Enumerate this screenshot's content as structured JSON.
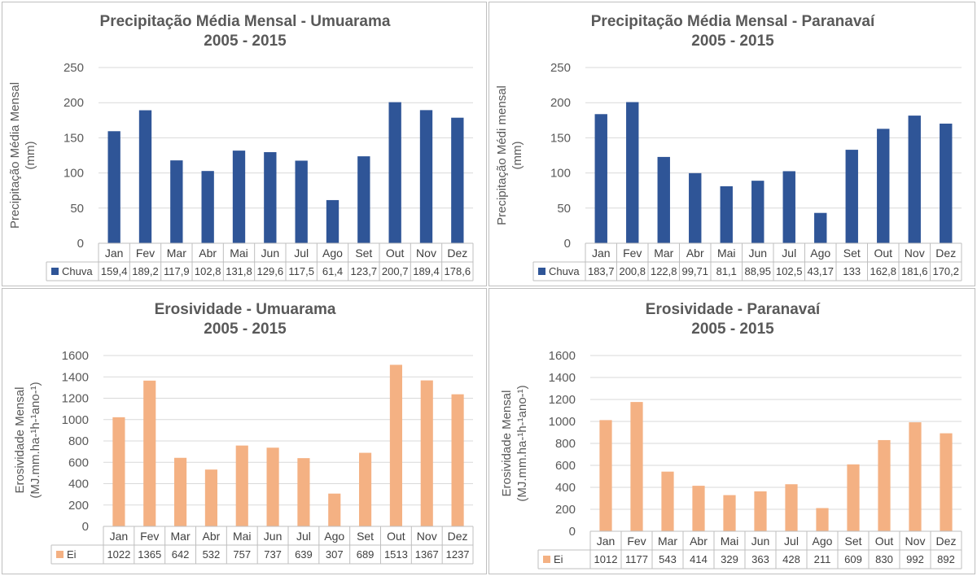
{
  "chart_data": [
    {
      "type": "bar",
      "title": "Precipitação Média Mensal - Umuarama",
      "subtitle": "2005 - 2015",
      "ylabel": [
        "Precipitação Média Mensal",
        "(mm)"
      ],
      "ylim": [
        0,
        250
      ],
      "yticks": [
        0,
        50,
        100,
        150,
        200,
        250
      ],
      "grid": true,
      "legend": "data-table",
      "categories": [
        "Jan",
        "Fev",
        "Mar",
        "Abr",
        "Mai",
        "Jun",
        "Jul",
        "Ago",
        "Set",
        "Out",
        "Nov",
        "Dez"
      ],
      "series": [
        {
          "name": "Chuva",
          "color": "#2F5597",
          "values": [
            159.4,
            189.2,
            117.9,
            102.8,
            131.8,
            129.6,
            117.5,
            61.4,
            123.7,
            200.7,
            189.4,
            178.6
          ],
          "labels": [
            "159,4",
            "189,2",
            "117,9",
            "102,8",
            "131,8",
            "129,6",
            "117,5",
            "61,4",
            "123,7",
            "200,7",
            "189,4",
            "178,6"
          ]
        }
      ]
    },
    {
      "type": "bar",
      "title": "Precipitação Média Mensal - Paranavaí",
      "subtitle": "2005 - 2015",
      "ylabel": [
        "Precipitação Médi mensal",
        "(mm)"
      ],
      "ylim": [
        0,
        250
      ],
      "yticks": [
        0,
        50,
        100,
        150,
        200,
        250
      ],
      "grid": true,
      "legend": "data-table",
      "categories": [
        "Jan",
        "Fev",
        "Mar",
        "Abr",
        "Mai",
        "Jun",
        "Jul",
        "Ago",
        "Set",
        "Out",
        "Nov",
        "Dez"
      ],
      "series": [
        {
          "name": "Chuva",
          "color": "#2F5597",
          "values": [
            183.7,
            200.8,
            122.8,
            99.71,
            81.1,
            88.95,
            102.5,
            43.17,
            133,
            162.8,
            181.6,
            170.2
          ],
          "labels": [
            "183,7",
            "200,8",
            "122,8",
            "99,71",
            "81,1",
            "88,95",
            "102,5",
            "43,17",
            "133",
            "162,8",
            "181,6",
            "170,2"
          ]
        }
      ]
    },
    {
      "type": "bar",
      "title": "Erosividade - Umuarama",
      "subtitle": "2005 - 2015",
      "ylabel": [
        "Erosividade Mensal",
        "(MJ.mm.ha-¹h-¹ano-¹)"
      ],
      "ylim": [
        0,
        1600
      ],
      "yticks": [
        0,
        200,
        400,
        600,
        800,
        1000,
        1200,
        1400,
        1600
      ],
      "grid": true,
      "legend": "data-table",
      "categories": [
        "Jan",
        "Fev",
        "Mar",
        "Abr",
        "Mai",
        "Jun",
        "Jul",
        "Ago",
        "Set",
        "Out",
        "Nov",
        "Dez"
      ],
      "series": [
        {
          "name": "Ei",
          "color": "#F4B183",
          "values": [
            1022,
            1365,
            642,
            532,
            757,
            737,
            639,
            307,
            689,
            1513,
            1367,
            1237
          ],
          "labels": [
            "1022",
            "1365",
            "642",
            "532",
            "757",
            "737",
            "639",
            "307",
            "689",
            "1513",
            "1367",
            "1237"
          ]
        }
      ]
    },
    {
      "type": "bar",
      "title": "Erosividade - Paranavaí",
      "subtitle": "2005 - 2015",
      "ylabel": [
        "Erosividade Mensal",
        "(MJ.mm.ha-¹h-¹ano-¹)"
      ],
      "ylim": [
        0,
        1600
      ],
      "yticks": [
        0,
        200,
        400,
        600,
        800,
        1000,
        1200,
        1400,
        1600
      ],
      "grid": true,
      "legend": "data-table",
      "categories": [
        "Jan",
        "Fev",
        "Mar",
        "Abr",
        "Mai",
        "Jun",
        "Jul",
        "Ago",
        "Set",
        "Out",
        "Nov",
        "Dez"
      ],
      "series": [
        {
          "name": "Ei",
          "color": "#F4B183",
          "values": [
            1012,
            1177,
            543,
            414,
            329,
            363,
            428,
            211,
            609,
            830,
            992,
            892
          ],
          "labels": [
            "1012",
            "1177",
            "543",
            "414",
            "329",
            "363",
            "428",
            "211",
            "609",
            "830",
            "992",
            "892"
          ]
        }
      ]
    }
  ]
}
